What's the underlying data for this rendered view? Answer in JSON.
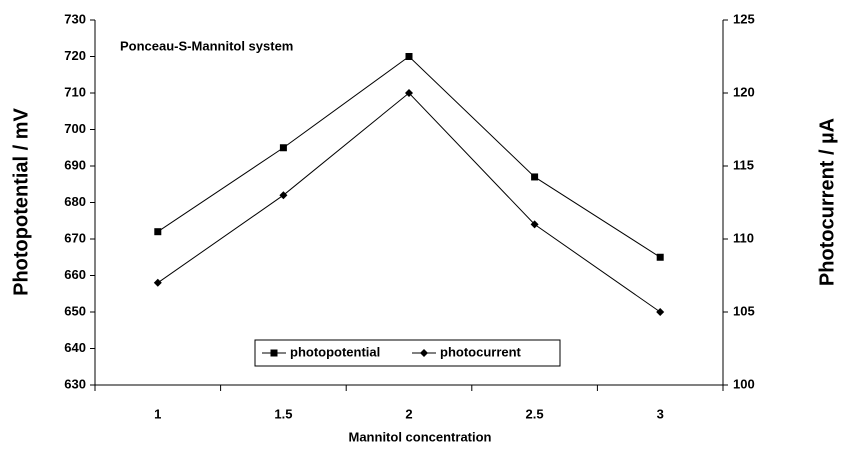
{
  "chart_data": {
    "type": "line",
    "title": "Ponceau-S-Mannitol system",
    "x_label": "Mannitol concentration",
    "y_label": "Photopotential / mV",
    "y2_label": "Photocurrent / µA",
    "categories": [
      "1",
      "1.5",
      "2",
      "2.5",
      "3"
    ],
    "series": [
      {
        "name": "photopotential",
        "color": "#000000",
        "marker": "square",
        "values": [
          672,
          695,
          720,
          687,
          665
        ]
      },
      {
        "name": "photocurrent",
        "color": "#000000",
        "marker": "diamond",
        "axis": "y2",
        "values": [
          107,
          113,
          120,
          111,
          105
        ]
      }
    ],
    "ylim": [
      630,
      730
    ],
    "yticks": [
      630,
      640,
      650,
      660,
      670,
      680,
      690,
      700,
      710,
      720,
      730
    ],
    "y2lim": [
      100,
      125
    ],
    "y2ticks": [
      100,
      105,
      110,
      115,
      120,
      125
    ],
    "legend": "bottom",
    "grid": false
  }
}
